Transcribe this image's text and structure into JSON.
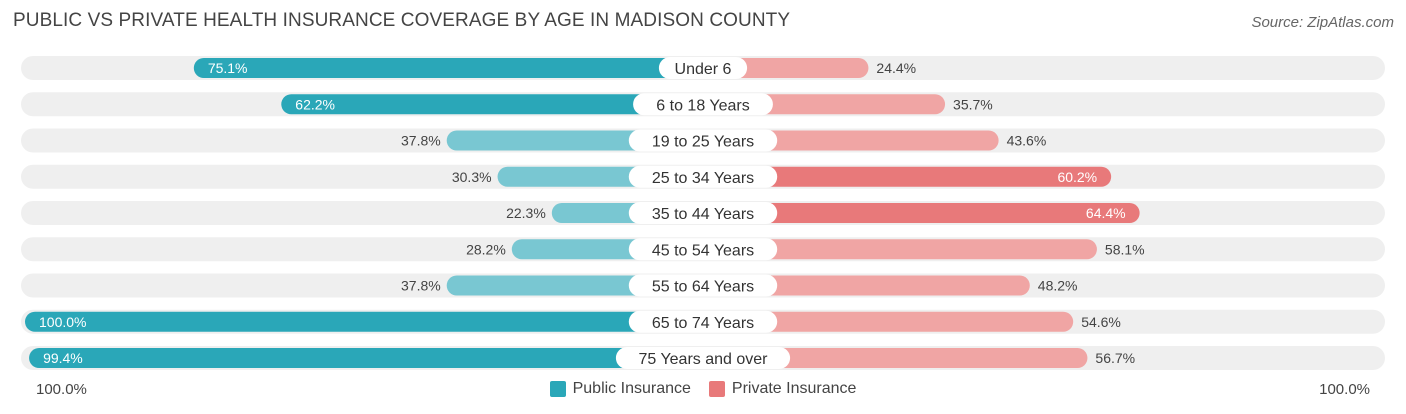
{
  "title": "PUBLIC VS PRIVATE HEALTH INSURANCE COVERAGE BY AGE IN MADISON COUNTY",
  "source": "Source: ZipAtlas.com",
  "axis": {
    "left_label": "100.0%",
    "right_label": "100.0%"
  },
  "legend": {
    "public_label": "Public Insurance",
    "private_label": "Private Insurance"
  },
  "colors": {
    "public_dark": "#2aa7b8",
    "public_light": "#79c7d2",
    "private_dark": "#e8797a",
    "private_light": "#f0a5a4",
    "track": "#efefef"
  },
  "chart_data": {
    "type": "bar",
    "orientation": "diverging-horizontal",
    "title": "PUBLIC VS PRIVATE HEALTH INSURANCE COVERAGE BY AGE IN MADISON COUNTY",
    "categories": [
      "Under 6",
      "6 to 18 Years",
      "19 to 25 Years",
      "25 to 34 Years",
      "35 to 44 Years",
      "45 to 54 Years",
      "55 to 64 Years",
      "65 to 74 Years",
      "75 Years and over"
    ],
    "series": [
      {
        "name": "Public Insurance",
        "values": [
          75.1,
          62.2,
          37.8,
          30.3,
          22.3,
          28.2,
          37.8,
          100.0,
          99.4
        ],
        "labels": [
          "75.1%",
          "62.2%",
          "37.8%",
          "30.3%",
          "22.3%",
          "28.2%",
          "37.8%",
          "100.0%",
          "99.4%"
        ]
      },
      {
        "name": "Private Insurance",
        "values": [
          24.4,
          35.7,
          43.6,
          60.2,
          64.4,
          58.1,
          48.2,
          54.6,
          56.7
        ],
        "labels": [
          "24.4%",
          "35.7%",
          "43.6%",
          "60.2%",
          "64.4%",
          "58.1%",
          "48.2%",
          "54.6%",
          "56.7%"
        ]
      }
    ],
    "xlim": [
      0,
      100
    ],
    "legend_position": "bottom-center"
  }
}
